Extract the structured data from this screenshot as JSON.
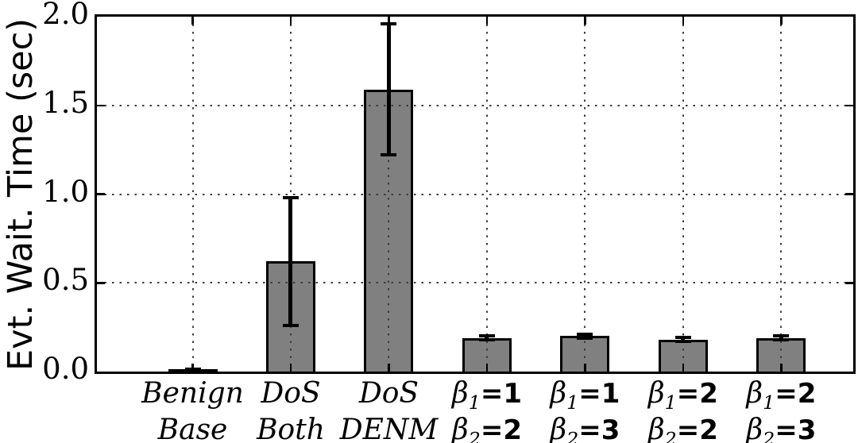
{
  "figure": {
    "title": "",
    "background": "#ffffff"
  },
  "chart_data": {
    "type": "bar",
    "title": "",
    "xlabel": "",
    "ylabel": "Evt. Wait. Time (sec)",
    "categories": [
      [
        "Benign",
        "Base"
      ],
      [
        "DoS",
        "Both"
      ],
      [
        "DoS",
        "DENM"
      ],
      [
        "β₁=1",
        "β₂=2"
      ],
      [
        "β₁=1",
        "β₂=3"
      ],
      [
        "β₁=2",
        "β₂=2"
      ],
      [
        "β₁=2",
        "β₂=3"
      ]
    ],
    "values": [
      0.01,
      0.62,
      1.59,
      0.19,
      0.2,
      0.18,
      0.19
    ],
    "errors": [
      0.005,
      0.36,
      0.37,
      0.012,
      0.012,
      0.012,
      0.012
    ],
    "ylim": [
      0,
      2
    ],
    "ytick_values": [
      0,
      0.5,
      1,
      1.5,
      2
    ],
    "ytick_labels": [
      "0.0",
      "0.5",
      "1.0",
      "1.5",
      "2.0"
    ],
    "bar_color": "#808080",
    "bar_edge_color": "#000000",
    "error_color": "#000000",
    "grid": "dotted both axes, drawn above bars",
    "legend": "none"
  }
}
